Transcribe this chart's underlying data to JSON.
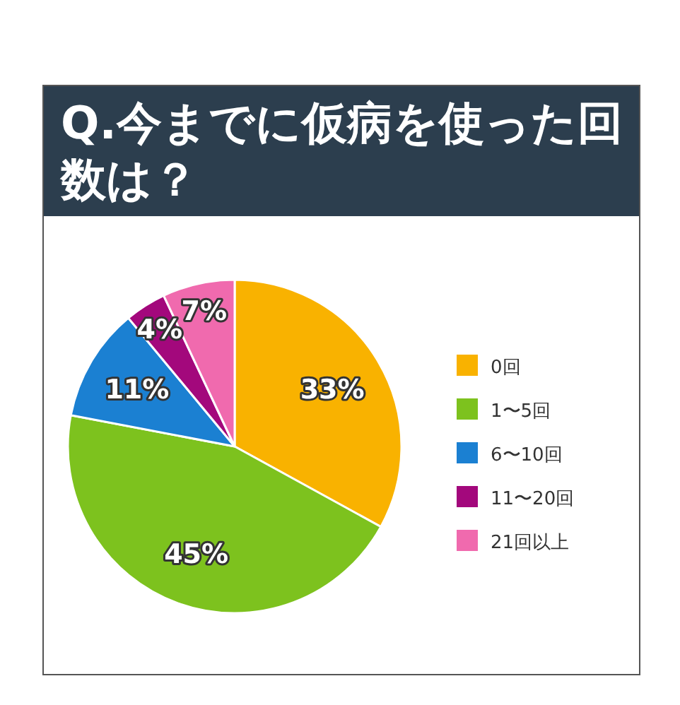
{
  "chart_data": {
    "type": "pie",
    "title": "Q.今までに仮病を使った回数は？",
    "categories": [
      "0回",
      "1〜5回",
      "6〜10回",
      "11〜20回",
      "21回以上"
    ],
    "values": [
      33,
      45,
      11,
      4,
      7
    ],
    "colors": [
      "#f9b200",
      "#7dc21e",
      "#1b80d2",
      "#a3087c",
      "#f06aae"
    ],
    "value_labels": [
      "33%",
      "45%",
      "11%",
      "4%",
      "7%"
    ],
    "legend": "right"
  }
}
